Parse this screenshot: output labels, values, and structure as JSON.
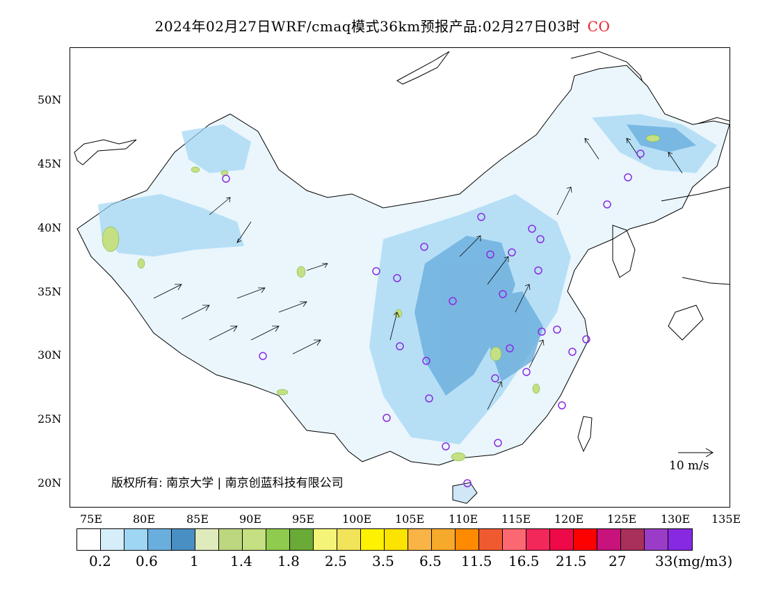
{
  "title": {
    "main": "2024年02月27日WRF/cmaq模式36km预报产品:02月27日03时",
    "species": "CO",
    "species_color": "#e8202a"
  },
  "axes": {
    "lat_labels": [
      "50N",
      "45N",
      "40N",
      "35N",
      "30N",
      "25N",
      "20N"
    ],
    "lon_labels": [
      "75E",
      "80E",
      "85E",
      "90E",
      "95E",
      "100E",
      "105E",
      "110E",
      "115E",
      "120E",
      "125E",
      "130E",
      "135E"
    ]
  },
  "copyright": "版权所有: 南京大学 | 南京创蓝科技有限公司",
  "wind_scale_label": "10 m/s",
  "legend": {
    "colors": [
      "#ffffff",
      "#d6eefa",
      "#9fd6f3",
      "#6aaedd",
      "#4a8fc3",
      "#dfeabd",
      "#bcd77f",
      "#c4e082",
      "#8fcb4e",
      "#6aaa36",
      "#f4f578",
      "#f1e45a",
      "#fef200",
      "#fde300",
      "#f9b445",
      "#f6a92b",
      "#fd8a00",
      "#f05a30",
      "#fc6872",
      "#f2285a",
      "#ee0a48",
      "#fd0000",
      "#c8137c",
      "#a8305a",
      "#9a3cc7",
      "#8829e2"
    ],
    "labels": [
      "0.2",
      "0.6",
      "1",
      "1.4",
      "1.8",
      "2.5",
      "3.5",
      "6.5",
      "11.5",
      "16.5",
      "21.5",
      "27",
      "33(mg/m3)"
    ],
    "unit": "mg/m3"
  },
  "stations_color": "#8a2be2"
}
